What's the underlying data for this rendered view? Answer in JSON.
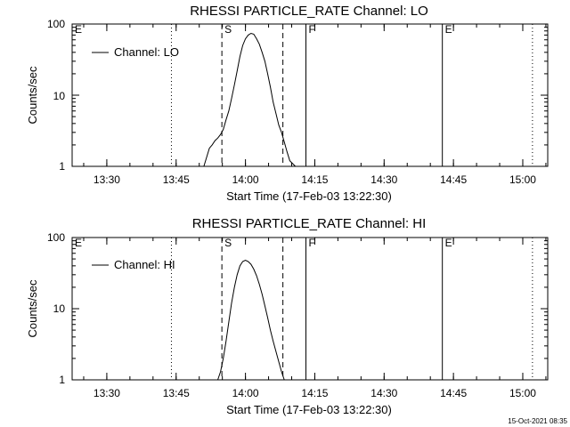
{
  "chart_data": [
    {
      "type": "line",
      "title": "RHESSI PARTICLE_RATE Channel: LO",
      "xlabel": "Start Time (17-Feb-03 13:22:30)",
      "ylabel": "Counts/sec",
      "legend": "Channel: LO",
      "legend_placement": "top-left",
      "x_ticks": [
        "13:30",
        "13:45",
        "14:00",
        "14:15",
        "14:30",
        "14:45",
        "15:00"
      ],
      "y_ticks": [
        "1",
        "10",
        "100"
      ],
      "xlim": [
        13.375,
        15.09
      ],
      "ylim": [
        1,
        100
      ],
      "yscale": "log",
      "markers": [
        {
          "label": "E",
          "x": 13.375,
          "style": "dotted"
        },
        {
          "label": "",
          "x": 13.733,
          "style": "dotted"
        },
        {
          "label": "S",
          "x": 13.915,
          "style": "dashed"
        },
        {
          "label": "",
          "x": 14.135,
          "style": "dashed"
        },
        {
          "label": "F",
          "x": 14.218,
          "style": "solid"
        },
        {
          "label": "E",
          "x": 14.71,
          "style": "solid"
        },
        {
          "label": "",
          "x": 15.035,
          "style": "dotted"
        }
      ],
      "x": [
        13.85,
        13.87,
        13.88,
        13.89,
        13.9,
        13.91,
        13.92,
        13.93,
        13.94,
        13.95,
        13.96,
        13.97,
        13.98,
        13.99,
        14.0,
        14.01,
        14.02,
        14.03,
        14.04,
        14.05,
        14.06,
        14.07,
        14.08,
        14.09,
        14.1,
        14.11,
        14.12,
        14.13,
        14.14,
        14.15,
        14.16,
        14.18,
        14.2
      ],
      "values": [
        1.0,
        1.8,
        2.0,
        2.3,
        2.5,
        2.8,
        3.3,
        4.5,
        6.0,
        9.0,
        14,
        22,
        35,
        50,
        62,
        70,
        74,
        72,
        62,
        52,
        40,
        30,
        20,
        13,
        8,
        5.5,
        3.8,
        3.0,
        2.2,
        1.6,
        1.2,
        1.0,
        1.0
      ]
    },
    {
      "type": "line",
      "title": "RHESSI PARTICLE_RATE Channel: HI",
      "xlabel": "Start Time (17-Feb-03 13:22:30)",
      "ylabel": "Counts/sec",
      "legend": "Channel: HI",
      "legend_placement": "top-left",
      "x_ticks": [
        "13:30",
        "13:45",
        "14:00",
        "14:15",
        "14:30",
        "14:45",
        "15:00"
      ],
      "y_ticks": [
        "1",
        "10",
        "100"
      ],
      "xlim": [
        13.375,
        15.09
      ],
      "ylim": [
        1,
        100
      ],
      "yscale": "log",
      "markers": [
        {
          "label": "E",
          "x": 13.375,
          "style": "dotted"
        },
        {
          "label": "",
          "x": 13.733,
          "style": "dotted"
        },
        {
          "label": "S",
          "x": 13.915,
          "style": "dashed"
        },
        {
          "label": "",
          "x": 14.135,
          "style": "dashed"
        },
        {
          "label": "F",
          "x": 14.218,
          "style": "solid"
        },
        {
          "label": "E",
          "x": 14.71,
          "style": "solid"
        },
        {
          "label": "",
          "x": 15.035,
          "style": "dotted"
        }
      ],
      "x": [
        13.9,
        13.91,
        13.92,
        13.93,
        13.94,
        13.95,
        13.96,
        13.97,
        13.98,
        13.99,
        14.0,
        14.01,
        14.02,
        14.03,
        14.04,
        14.05,
        14.06,
        14.07,
        14.08,
        14.09,
        14.1,
        14.11,
        14.12,
        14.13,
        14.14
      ],
      "values": [
        1.0,
        1.3,
        2.0,
        3.5,
        6.5,
        12,
        20,
        30,
        40,
        46,
        48,
        46,
        42,
        36,
        29,
        22,
        16,
        11,
        7.5,
        5,
        3.5,
        2.5,
        1.8,
        1.3,
        1.0
      ]
    }
  ],
  "footer": {
    "timestamp": "15-Oct-2021 08:35"
  },
  "colors": {
    "line": "#000000",
    "background": "#ffffff"
  }
}
